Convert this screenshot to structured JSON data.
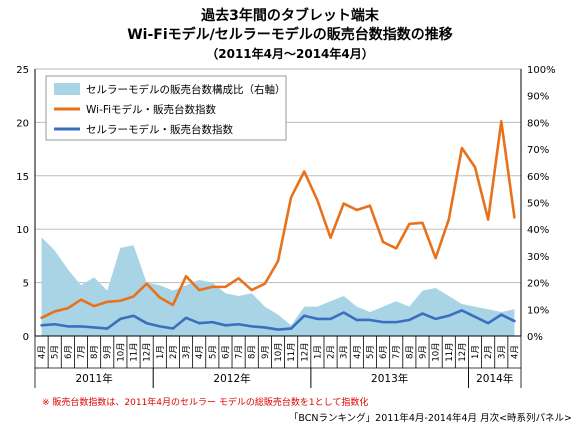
{
  "chart_data": {
    "type": "line",
    "title_lines": [
      "過去3年間のタブレット端末",
      "Wi-Fiモデル/セルラーモデルの販売台数指数の推移"
    ],
    "subtitle": "（2011年4月～2014年4月）",
    "months": [
      "4月",
      "5月",
      "6月",
      "7月",
      "8月",
      "9月",
      "10月",
      "11月",
      "12月",
      "1月",
      "2月",
      "3月",
      "4月",
      "5月",
      "6月",
      "7月",
      "8月",
      "9月",
      "10月",
      "11月",
      "12月",
      "1月",
      "2月",
      "3月",
      "4月",
      "5月",
      "6月",
      "7月",
      "8月",
      "9月",
      "10月",
      "11月",
      "12月",
      "1月",
      "2月",
      "3月",
      "4月"
    ],
    "years": [
      {
        "label": "2011年",
        "start": 0,
        "end": 8
      },
      {
        "label": "2012年",
        "start": 9,
        "end": 20
      },
      {
        "label": "2013年",
        "start": 21,
        "end": 32
      },
      {
        "label": "2014年",
        "start": 33,
        "end": 36
      }
    ],
    "y_left": {
      "min": 0,
      "max": 25,
      "step": 5,
      "ticks": [
        "0",
        "5",
        "10",
        "15",
        "20",
        "25"
      ]
    },
    "y_right": {
      "min": 0,
      "max": 100,
      "step": 10,
      "ticks": [
        "0%",
        "10%",
        "20%",
        "30%",
        "40%",
        "50%",
        "60%",
        "70%",
        "80%",
        "90%",
        "100%"
      ]
    },
    "series": [
      {
        "name": "セルラーモデルの販売台数構成比（右軸）",
        "kind": "area",
        "axis": "right",
        "color": "#a8d4e6",
        "values": [
          37,
          32,
          25,
          19,
          22,
          17,
          33,
          34,
          20,
          19,
          17,
          19,
          21,
          20,
          16,
          15,
          16,
          11,
          8,
          4,
          11,
          11,
          13,
          15,
          11,
          9,
          11,
          13,
          11,
          17,
          18,
          15,
          12,
          11,
          10,
          9,
          10
        ]
      },
      {
        "name": "Wi-Fiモデル・販売台数指数",
        "kind": "line",
        "axis": "left",
        "color": "#e8721c",
        "values": [
          1.7,
          2.3,
          2.6,
          3.4,
          2.8,
          3.2,
          3.3,
          3.7,
          4.9,
          3.6,
          2.9,
          5.6,
          4.3,
          4.6,
          4.6,
          5.4,
          4.3,
          4.9,
          7.0,
          13.0,
          15.4,
          12.7,
          9.2,
          12.4,
          11.8,
          12.2,
          8.8,
          8.2,
          10.5,
          10.6,
          7.3,
          10.9,
          17.6,
          15.8,
          10.9,
          20.1,
          11.1
        ]
      },
      {
        "name": "セルラーモデル・販売台数指数",
        "kind": "line",
        "axis": "left",
        "color": "#3a6fbf",
        "values": [
          1.0,
          1.1,
          0.9,
          0.9,
          0.8,
          0.7,
          1.6,
          1.9,
          1.2,
          0.9,
          0.7,
          1.7,
          1.2,
          1.3,
          1.0,
          1.1,
          0.9,
          0.8,
          0.6,
          0.7,
          1.9,
          1.6,
          1.6,
          2.2,
          1.5,
          1.5,
          1.3,
          1.3,
          1.5,
          2.1,
          1.6,
          1.9,
          2.4,
          1.8,
          1.2,
          2.0,
          1.4
        ]
      }
    ],
    "legend_position": "top-left",
    "note": "※ 販売台数指数は、2011年4月のセルラー モデルの総販売台数を1として指数化",
    "source": "「BCNランキング」2011年4月-2014年4月 月次<時系列パネル>"
  }
}
